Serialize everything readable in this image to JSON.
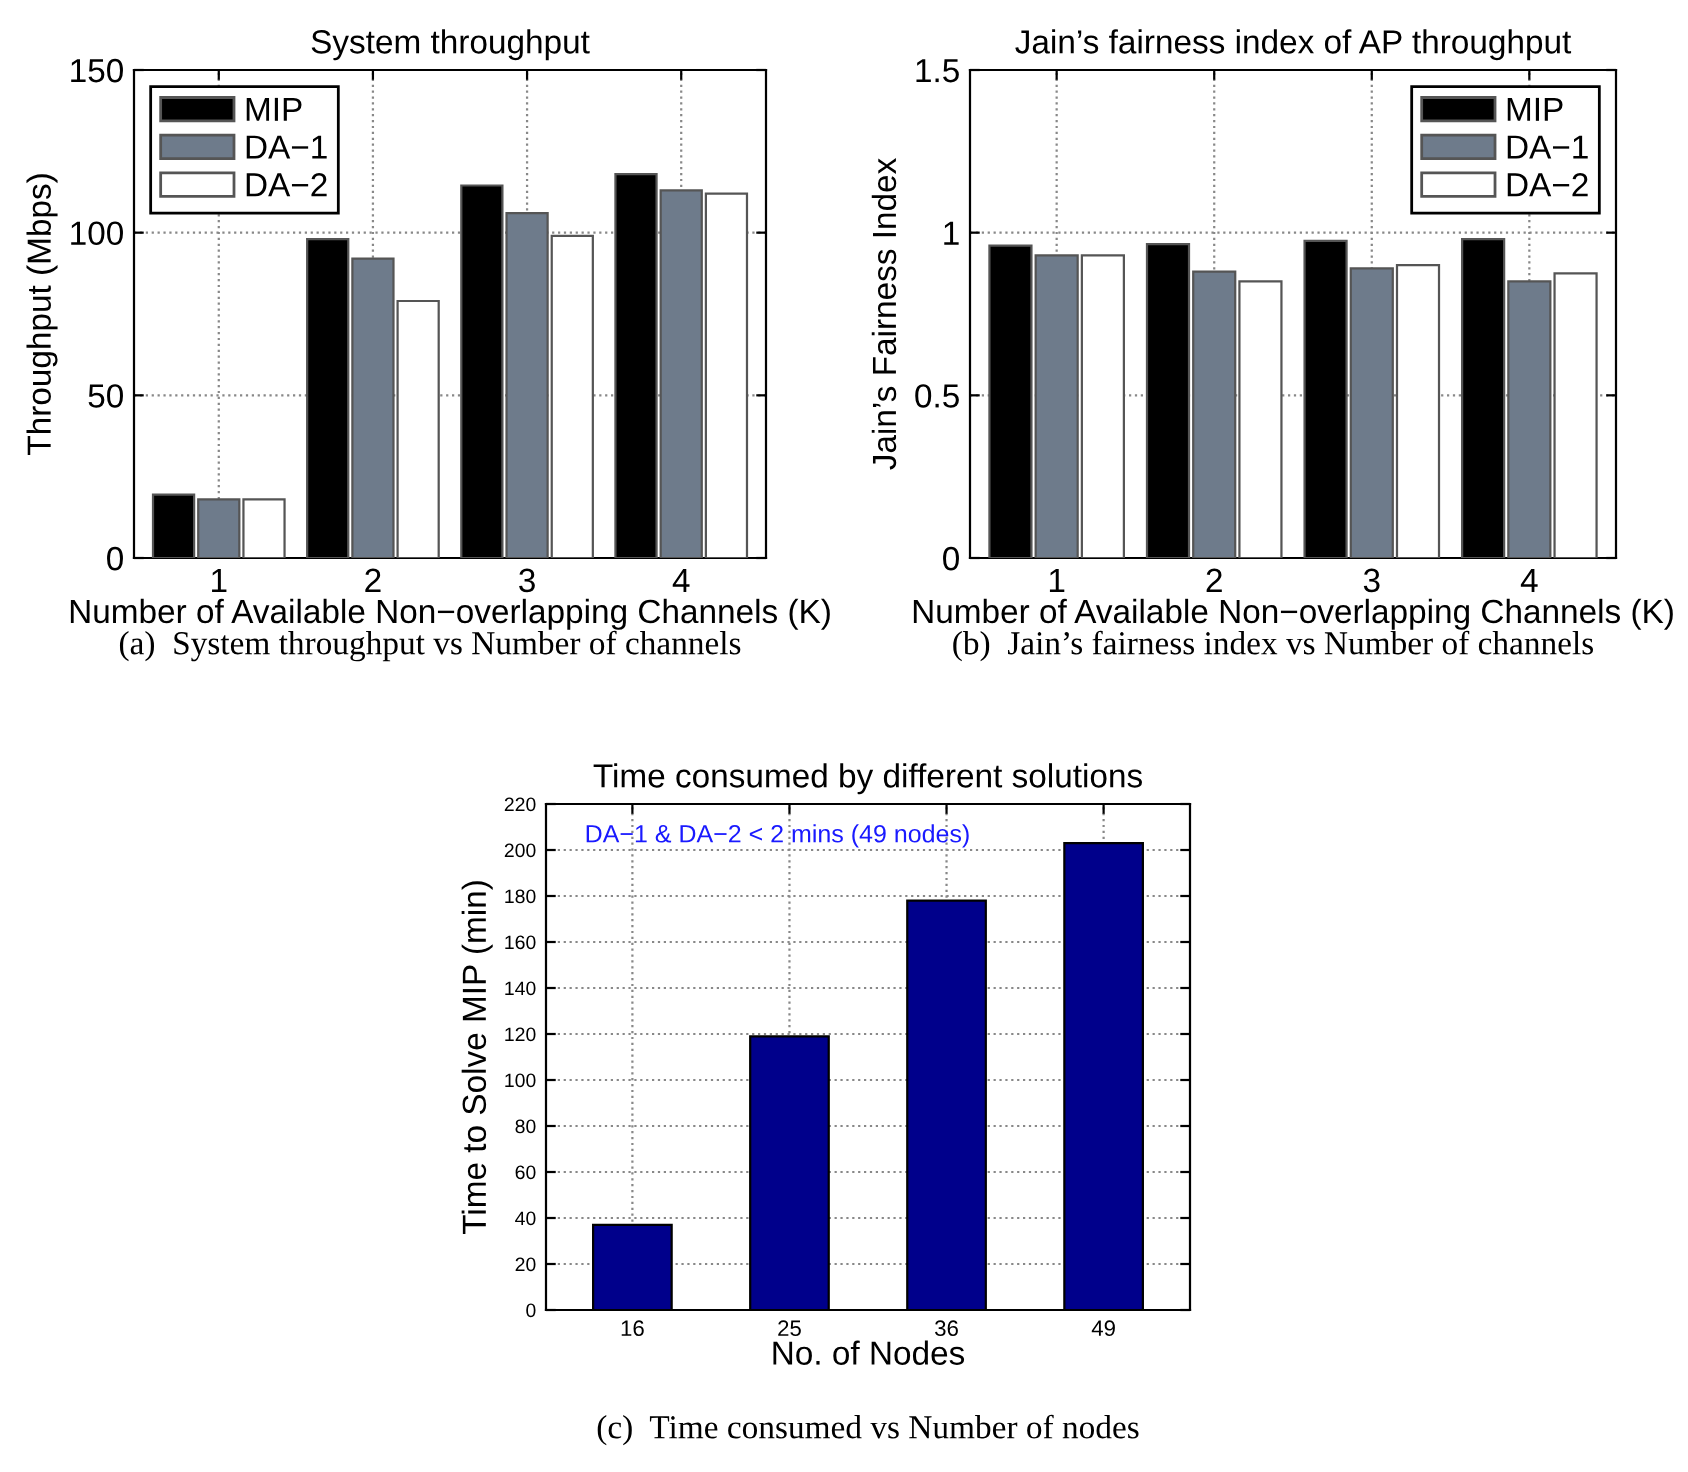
{
  "chart_data": [
    {
      "type": "bar",
      "title": "System throughput",
      "xlabel": "Number of Available Non−overlapping Channels (K)",
      "ylabel": "Throughput (Mbps)",
      "categories": [
        "1",
        "2",
        "3",
        "4"
      ],
      "series": [
        {
          "name": "MIP",
          "color": "#000000",
          "values": [
            19.5,
            98,
            114.5,
            118
          ]
        },
        {
          "name": "DA−1",
          "color": "#6e7b8b",
          "values": [
            18,
            92,
            106,
            113
          ]
        },
        {
          "name": "DA−2",
          "color": "#ffffff",
          "values": [
            18,
            79,
            99,
            112
          ]
        }
      ],
      "ylim": [
        0,
        150
      ],
      "yticks": [
        0,
        50,
        100,
        150
      ],
      "grid": true,
      "legend": "top left",
      "annotations": [
        "(a)  System throughput vs Number of channels"
      ]
    },
    {
      "type": "bar",
      "title": "Jain’s fairness index of AP throughput",
      "xlabel": "Number of Available Non−overlapping Channels (K)",
      "ylabel": "Jain’s Fairness Index",
      "categories": [
        "1",
        "2",
        "3",
        "4"
      ],
      "series": [
        {
          "name": "MIP",
          "color": "#000000",
          "values": [
            0.96,
            0.965,
            0.975,
            0.98
          ]
        },
        {
          "name": "DA−1",
          "color": "#6e7b8b",
          "values": [
            0.93,
            0.88,
            0.89,
            0.85
          ]
        },
        {
          "name": "DA−2",
          "color": "#ffffff",
          "values": [
            0.93,
            0.85,
            0.9,
            0.875
          ]
        }
      ],
      "ylim": [
        0,
        1.5
      ],
      "yticks": [
        0,
        {
          "value": 0.5,
          "label": "0.5"
        },
        1,
        {
          "value": 1.5,
          "label": "1.5"
        }
      ],
      "grid": true,
      "legend": "top right",
      "annotations": [
        "(b)  Jain’s fairness index vs Number of channels"
      ]
    },
    {
      "type": "bar",
      "title": "Time consumed by different solutions",
      "xlabel": "No. of Nodes",
      "ylabel": "Time to Solve MIP (min)",
      "categories": [
        "16",
        "25",
        "36",
        "49"
      ],
      "series": [
        {
          "color": "#00008b",
          "values": [
            37,
            119,
            178,
            203
          ]
        }
      ],
      "ylim": [
        0,
        220
      ],
      "yticks": [
        0,
        20,
        40,
        60,
        80,
        100,
        120,
        140,
        160,
        180,
        200,
        220
      ],
      "grid": true,
      "annotations": [
        "DA−1 & DA−2 < 2 mins (49 nodes)",
        "(c)  Time consumed vs Number of nodes"
      ]
    }
  ]
}
